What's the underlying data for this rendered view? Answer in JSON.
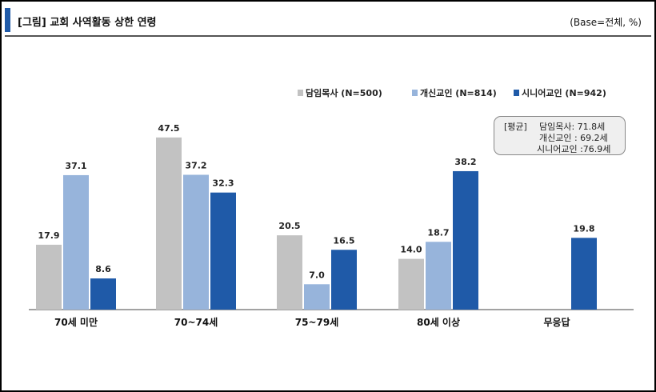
{
  "header": {
    "title": "[그림] 교회 사역활동 상한 연령",
    "base": "(Base=전체, %)"
  },
  "colors": {
    "series": [
      "#c2c2c2",
      "#97b4db",
      "#1f5aa8"
    ],
    "title_bar": "#1f5aa8"
  },
  "note": {
    "label": "[평균]",
    "lines": [
      "담임목사: 71.8세",
      "개신교인 : 69.2세",
      "시니어교인 :76.9세"
    ]
  },
  "chart_data": {
    "type": "bar",
    "title": "[그림] 교회 사역활동 상한 연령",
    "xlabel": "",
    "ylabel": "%",
    "ylim": [
      0,
      50
    ],
    "grid": false,
    "legend_position": "top-right",
    "categories": [
      "70세 미만",
      "70~74세",
      "75~79세",
      "80세 이상",
      "무응답"
    ],
    "series": [
      {
        "name": "담임목사 (N=500)",
        "values": [
          17.9,
          47.5,
          20.5,
          14.0,
          null
        ]
      },
      {
        "name": "개신교인 (N=814)",
        "values": [
          37.1,
          37.2,
          7.0,
          18.7,
          null
        ]
      },
      {
        "name": "시니어교인 (N=942)",
        "values": [
          8.6,
          32.3,
          16.5,
          38.2,
          19.8
        ]
      }
    ]
  }
}
